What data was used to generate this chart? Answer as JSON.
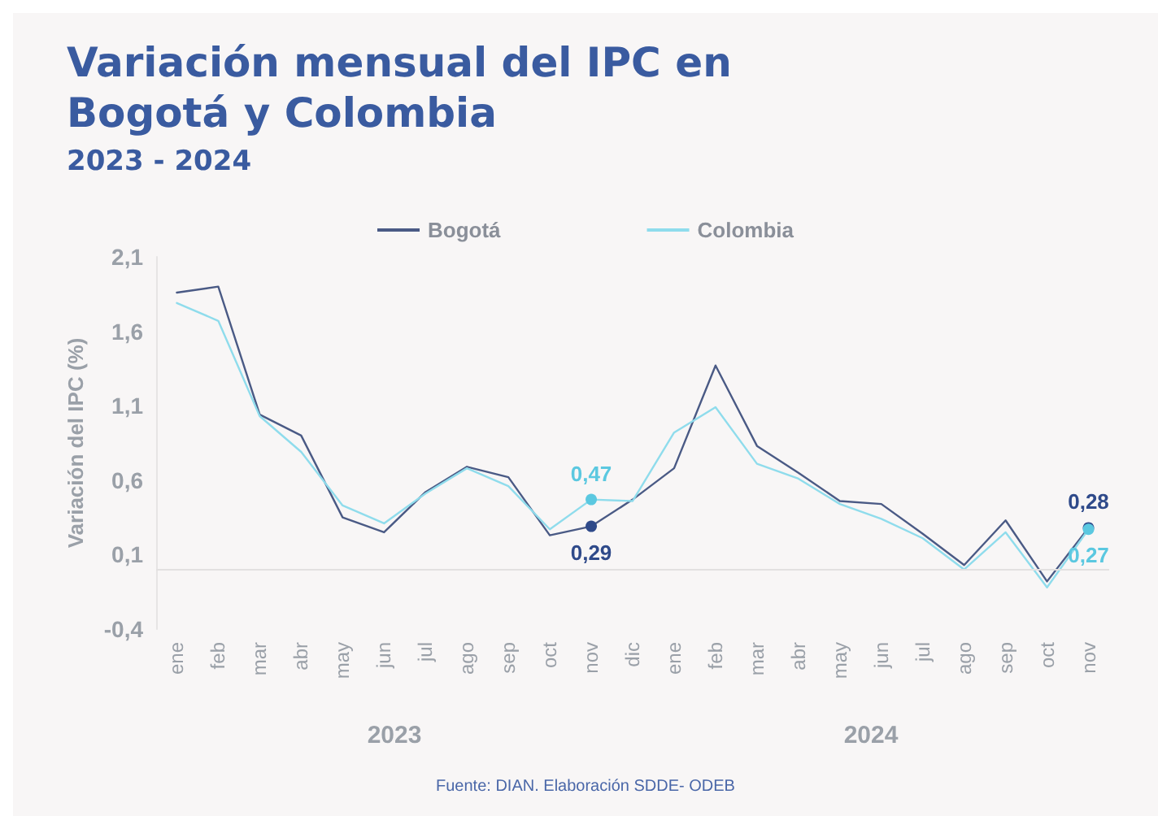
{
  "chart_data": {
    "type": "line",
    "title": "Variación mensual del IPC en\nBogotá y Colombia",
    "subtitle": "2023 - 2024",
    "ylabel": "Variación del IPC (%)",
    "categories": [
      "ene",
      "feb",
      "mar",
      "abr",
      "may",
      "jun",
      "jul",
      "ago",
      "sep",
      "oct",
      "nov",
      "dic",
      "ene",
      "feb",
      "mar",
      "abr",
      "may",
      "jun",
      "jul",
      "ago",
      "sep",
      "oct",
      "nov"
    ],
    "series": [
      {
        "name": "Bogotá",
        "color": "#4a5a85",
        "values": [
          1.86,
          1.9,
          1.04,
          0.9,
          0.35,
          0.25,
          0.52,
          0.69,
          0.62,
          0.23,
          0.29,
          0.47,
          0.68,
          1.37,
          0.83,
          0.65,
          0.46,
          0.44,
          0.24,
          0.03,
          0.33,
          -0.08,
          0.28
        ],
        "value_labels": [
          null,
          null,
          null,
          null,
          null,
          null,
          null,
          null,
          null,
          null,
          "0,29",
          null,
          null,
          null,
          null,
          null,
          null,
          null,
          null,
          null,
          null,
          null,
          "0,28"
        ]
      },
      {
        "name": "Colombia",
        "color": "#8fdcec",
        "values": [
          1.79,
          1.67,
          1.03,
          0.79,
          0.43,
          0.31,
          0.51,
          0.68,
          0.56,
          0.27,
          0.47,
          0.46,
          0.92,
          1.09,
          0.71,
          0.61,
          0.44,
          0.34,
          0.21,
          0.0,
          0.25,
          -0.12,
          0.27
        ],
        "value_labels": [
          null,
          null,
          null,
          null,
          null,
          null,
          null,
          null,
          null,
          null,
          "0,47",
          null,
          null,
          null,
          null,
          null,
          null,
          null,
          null,
          null,
          null,
          null,
          "0,27"
        ]
      }
    ],
    "ylim": [
      -0.4,
      2.1
    ],
    "yticks": [
      {
        "value": -0.4,
        "label": "-0,4"
      },
      {
        "value": 0.1,
        "label": "0,1"
      },
      {
        "value": 0.6,
        "label": "0,6"
      },
      {
        "value": 1.1,
        "label": "1,1"
      },
      {
        "value": 1.6,
        "label": "1,6"
      },
      {
        "value": 2.1,
        "label": "2,1"
      }
    ],
    "ref_lines": [
      {
        "axis": "y",
        "value": 0,
        "color": "#e2e0e0"
      }
    ],
    "grid": false,
    "legend": "top",
    "marker": "none",
    "line_style": "solid",
    "annotations": [
      "2023",
      "2024",
      "Fuente: DIAN. Elaboración SDDE- ODEB"
    ]
  }
}
